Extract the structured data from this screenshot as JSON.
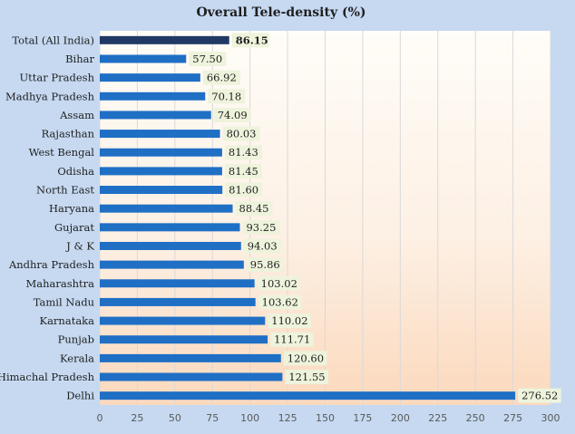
{
  "chart_data": {
    "type": "bar",
    "orientation": "horizontal",
    "title": "Overall Tele-density (%)",
    "xlabel": "",
    "ylabel": "",
    "xlim": [
      0,
      300
    ],
    "xticks": [
      0,
      25,
      50,
      75,
      100,
      125,
      150,
      175,
      200,
      225,
      250,
      275,
      300
    ],
    "grid": true,
    "categories": [
      "Total (All India)",
      "Bihar",
      "Uttar Pradesh",
      "Madhya Pradesh",
      "Assam",
      "Rajasthan",
      "West Bengal",
      "Odisha",
      "North East",
      "Haryana",
      "Gujarat",
      "J & K",
      "Andhra Pradesh",
      "Maharashtra",
      "Tamil Nadu",
      "Karnataka",
      "Punjab",
      "Kerala",
      "Himachal Pradesh",
      "Delhi"
    ],
    "values": [
      86.15,
      57.5,
      66.92,
      70.18,
      74.09,
      80.03,
      81.43,
      81.45,
      81.6,
      88.45,
      93.25,
      94.03,
      95.86,
      103.02,
      103.62,
      110.02,
      111.71,
      120.6,
      121.55,
      276.52
    ],
    "labels": [
      "86.15",
      "57.50",
      "66.92",
      "70.18",
      "74.09",
      "80.03",
      "81.43",
      "81.45",
      "81.60",
      "88.45",
      "93.25",
      "94.03",
      "95.86",
      "103.02",
      "103.62",
      "110.02",
      "111.71",
      "120.60",
      "121.55",
      "276.52"
    ],
    "highlight_index": 0,
    "colors": {
      "bar": "#1f6fc5",
      "highlight_bar": "#203864",
      "label_bg": "#eef3dc",
      "grid": "#d9d9d9"
    }
  }
}
